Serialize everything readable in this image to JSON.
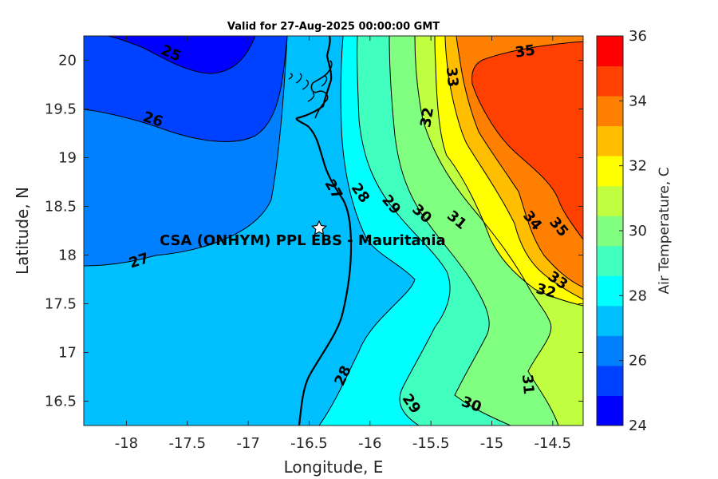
{
  "title": "Valid for 27-Aug-2025 00:00:00 GMT",
  "x_axis": {
    "label": "Longitude, E",
    "ticks": [
      "-18",
      "-17.5",
      "-17",
      "-16.5",
      "-16",
      "-15.5",
      "-15",
      "-14.5"
    ]
  },
  "y_axis": {
    "label": "Latitude, N",
    "ticks": [
      "20",
      "19.5",
      "19",
      "18.5",
      "18",
      "17.5",
      "17",
      "16.5"
    ]
  },
  "colorbar": {
    "label": "Air Temperature, C",
    "ticks": [
      "24",
      "26",
      "28",
      "30",
      "32",
      "34",
      "36"
    ],
    "colors": [
      "#0000ff",
      "#0040ff",
      "#0080ff",
      "#00bfff",
      "#00ffff",
      "#40ffbf",
      "#80ff80",
      "#bfff40",
      "#ffff00",
      "#ffbf00",
      "#ff8000",
      "#ff4000",
      "#ff0000"
    ]
  },
  "station": {
    "label": "CSA (ONHYM) PPL EBS  - Mauritania",
    "marker": "star-icon"
  },
  "contour_labels": [
    "25",
    "26",
    "27",
    "27",
    "28",
    "29",
    "30",
    "31",
    "32",
    "33",
    "34",
    "35",
    "35",
    "33",
    "32",
    "28",
    "29",
    "30",
    "31"
  ],
  "chart_data": {
    "type": "heatmap",
    "title": "Valid for 27-Aug-2025 00:00:00 GMT",
    "xlabel": "Longitude, E",
    "ylabel": "Latitude, N",
    "xlim": [
      -18.35,
      -14.25
    ],
    "ylim": [
      16.25,
      20.25
    ],
    "clim": [
      24,
      36
    ],
    "colorbar_label": "Air Temperature, C",
    "contour_levels": [
      25,
      26,
      27,
      28,
      29,
      30,
      31,
      32,
      33,
      34,
      35
    ],
    "station": {
      "name": "CSA (ONHYM) PPL EBS  - Mauritania",
      "lon": -16.35,
      "lat": 18.28
    },
    "grid": false
  }
}
